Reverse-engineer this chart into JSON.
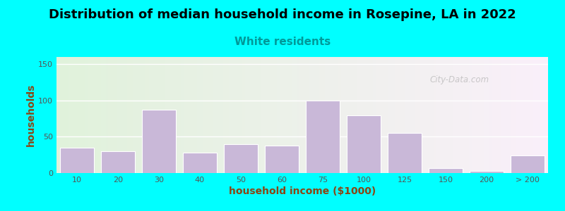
{
  "title": "Distribution of median household income in Rosepine, LA in 2022",
  "subtitle": "White residents",
  "xlabel": "household income ($1000)",
  "ylabel": "households",
  "background_outer": "#00FFFF",
  "bar_color": "#C9B8D8",
  "bar_edgecolor": "#FFFFFF",
  "title_fontsize": 13,
  "subtitle_fontsize": 11,
  "subtitle_color": "#009999",
  "ylabel_color": "#8B4513",
  "xlabel_color": "#8B4513",
  "ylim": [
    0,
    160
  ],
  "yticks": [
    0,
    50,
    100,
    150
  ],
  "categories": [
    "10",
    "20",
    "30",
    "40",
    "50",
    "60",
    "75",
    "100",
    "125",
    "150",
    "200",
    "> 200"
  ],
  "values": [
    35,
    30,
    87,
    28,
    40,
    38,
    100,
    80,
    55,
    7,
    3,
    24
  ],
  "watermark": "City-Data.com"
}
